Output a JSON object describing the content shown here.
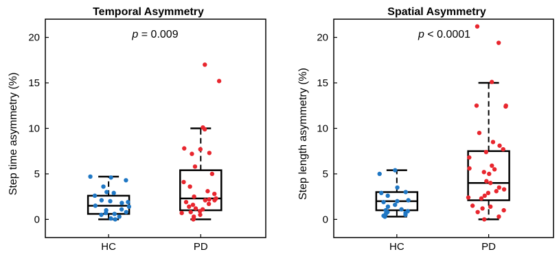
{
  "chart_data": [
    {
      "type": "box",
      "title": "Temporal Asymmetry",
      "annotation": {
        "label": "p",
        "text": "= 0.009"
      },
      "ylabel": "Step time asymmetry (%)",
      "ylim": [
        -2,
        22
      ],
      "yticks": [
        0,
        5,
        10,
        15,
        20
      ],
      "categories": [
        "HC",
        "PD"
      ],
      "groups": [
        {
          "category": "HC",
          "color": "#1f77c4",
          "box": {
            "whisker_low": 0.0,
            "q1": 0.6,
            "median": 1.5,
            "q3": 2.6,
            "whisker_high": 4.7
          },
          "points": [
            4.3,
            4.7,
            4.6,
            3.6,
            3.0,
            2.9,
            2.6,
            2.1,
            2.0,
            1.9,
            1.8,
            1.5,
            1.4,
            1.1,
            1.0,
            0.8,
            0.7,
            0.6,
            0.5,
            0.3,
            0.1,
            0.0
          ]
        },
        {
          "category": "PD",
          "color": "#e8262e",
          "box": {
            "whisker_low": 0.0,
            "q1": 1.0,
            "median": 2.3,
            "q3": 5.4,
            "whisker_high": 10.0
          },
          "points": [
            17.0,
            15.2,
            10.1,
            9.9,
            7.7,
            7.8,
            7.3,
            7.2,
            5.8,
            5.0,
            4.1,
            3.6,
            3.1,
            2.8,
            2.5,
            2.3,
            2.2,
            2.1,
            2.1,
            1.9,
            1.7,
            1.6,
            1.4,
            1.2,
            1.1,
            0.9,
            0.8,
            0.7,
            0.5,
            0.3,
            0.1,
            0.0
          ]
        }
      ]
    },
    {
      "type": "box",
      "title": "Spatial Asymmetry",
      "annotation": {
        "label": "p",
        "text": "< 0.0001"
      },
      "ylabel": "Step length asymmetry (%)",
      "ylim": [
        -2,
        22
      ],
      "yticks": [
        0,
        5,
        10,
        15,
        20
      ],
      "categories": [
        "HC",
        "PD"
      ],
      "groups": [
        {
          "category": "HC",
          "color": "#1f77c4",
          "box": {
            "whisker_low": 0.3,
            "q1": 1.0,
            "median": 2.0,
            "q3": 3.0,
            "whisker_high": 5.4
          },
          "points": [
            5.0,
            5.4,
            3.5,
            3.0,
            2.9,
            2.6,
            2.1,
            2.0,
            1.9,
            1.6,
            1.4,
            1.1,
            1.0,
            0.9,
            0.8,
            0.7,
            0.6,
            0.5,
            0.4,
            0.3
          ]
        },
        {
          "category": "PD",
          "color": "#e8262e",
          "box": {
            "whisker_low": 0.0,
            "q1": 2.1,
            "median": 4.0,
            "q3": 7.5,
            "whisker_high": 15.0
          },
          "points": [
            21.2,
            19.4,
            15.1,
            12.5,
            12.4,
            12.5,
            9.5,
            8.5,
            8.1,
            7.7,
            7.4,
            6.8,
            5.9,
            5.6,
            5.5,
            5.2,
            5.0,
            4.2,
            4.0,
            3.5,
            3.3,
            3.1,
            2.9,
            2.6,
            2.4,
            2.3,
            1.5,
            1.4,
            1.2,
            1.0,
            0.8,
            0.3,
            0.0
          ]
        }
      ]
    }
  ]
}
